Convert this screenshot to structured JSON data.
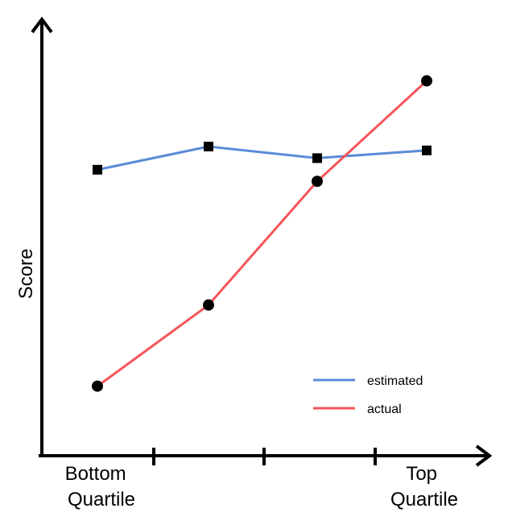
{
  "chart_data": {
    "type": "line",
    "title": "",
    "xlabel": "",
    "ylabel": "Score",
    "categories": [
      "Bottom Quartile",
      "",
      "",
      "Top Quartile"
    ],
    "series": [
      {
        "name": "estimated",
        "color": "#5b8bd6",
        "marker": "square",
        "values": [
          0.74,
          0.8,
          0.77,
          0.79
        ]
      },
      {
        "name": "actual",
        "color": "#f6555a",
        "marker": "circle",
        "values": [
          0.18,
          0.39,
          0.71,
          0.97
        ]
      }
    ],
    "ylim": [
      0,
      1.05
    ],
    "grid": false,
    "legend_position": "bottom-right"
  }
}
